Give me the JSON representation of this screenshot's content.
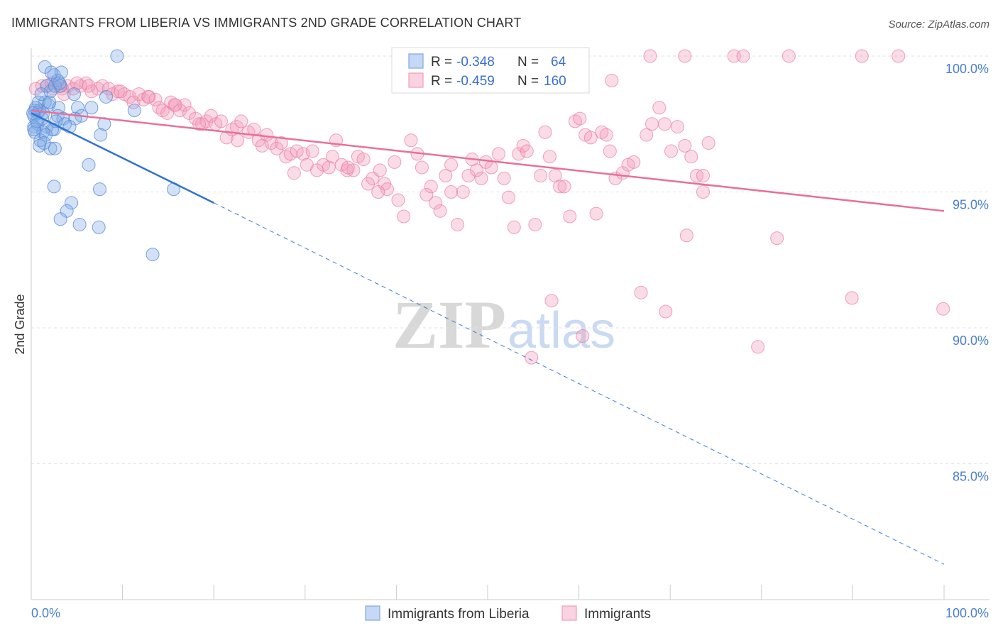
{
  "title": "IMMIGRANTS FROM LIBERIA VS IMMIGRANTS 2ND GRADE CORRELATION CHART",
  "source": "Source: ZipAtlas.com",
  "watermark": {
    "part1": "ZIP",
    "part2": "atlas"
  },
  "legend": {
    "rows": [
      {
        "r_label": "R =",
        "r_value": "-0.348",
        "n_label": "N =",
        "n_value": "64",
        "color": "#7fa8e6"
      },
      {
        "r_label": "R =",
        "r_value": "-0.459",
        "n_label": "N =",
        "n_value": "160",
        "color": "#f29bb8"
      }
    ]
  },
  "bottom_legend": [
    {
      "label": "Immigrants from Liberia",
      "color": "#7fa8e6"
    },
    {
      "label": "Immigrants",
      "color": "#f29bb8"
    }
  ],
  "chart_data": {
    "type": "scatter",
    "title": "IMMIGRANTS FROM LIBERIA VS IMMIGRANTS 2ND GRADE CORRELATION CHART",
    "xlabel": "",
    "ylabel": "2nd Grade",
    "xlim": [
      0,
      100
    ],
    "ylim": [
      80.9,
      100.9
    ],
    "x_tick_labels": [
      "0.0%",
      "100.0%"
    ],
    "y_tick_labels": [
      "100.0%",
      "95.0%",
      "90.0%",
      "85.0%"
    ],
    "y_tick_values": [
      100,
      95,
      90,
      85
    ],
    "grid": true,
    "series": [
      {
        "name": "Immigrants from Liberia",
        "color": "#7fa8e6",
        "trend": {
          "x": [
            0,
            20
          ],
          "y": [
            97.9,
            94.6
          ],
          "extended_to": [
            100,
            81.3
          ]
        },
        "points": [
          [
            1.5,
            99.6
          ],
          [
            2.5,
            99.3
          ],
          [
            3.3,
            99.4
          ],
          [
            2.9,
            99.1
          ],
          [
            1.7,
            98.9
          ],
          [
            2.1,
            98.7
          ],
          [
            2.6,
            98.9
          ],
          [
            3.2,
            98.9
          ],
          [
            4.7,
            98.6
          ],
          [
            8.2,
            98.5
          ],
          [
            1.5,
            98.3
          ],
          [
            0.8,
            98.3
          ],
          [
            1.9,
            98.2
          ],
          [
            3.0,
            98.1
          ],
          [
            5.1,
            98.1
          ],
          [
            6.6,
            98.1
          ],
          [
            11.3,
            98.0
          ],
          [
            0.4,
            98.0
          ],
          [
            0.9,
            98.0
          ],
          [
            0.7,
            97.9
          ],
          [
            1.3,
            97.9
          ],
          [
            0.3,
            97.8
          ],
          [
            2.9,
            97.8
          ],
          [
            3.5,
            97.7
          ],
          [
            5.5,
            97.8
          ],
          [
            4.8,
            97.7
          ],
          [
            0.7,
            97.5
          ],
          [
            0.3,
            97.4
          ],
          [
            1.7,
            97.4
          ],
          [
            3.7,
            97.5
          ],
          [
            4.2,
            97.4
          ],
          [
            8.0,
            97.5
          ],
          [
            2.5,
            97.3
          ],
          [
            1.3,
            97.2
          ],
          [
            0.4,
            97.2
          ],
          [
            7.6,
            97.1
          ],
          [
            1.0,
            96.9
          ],
          [
            0.9,
            96.7
          ],
          [
            2.1,
            96.6
          ],
          [
            2.6,
            96.6
          ],
          [
            6.3,
            96.0
          ],
          [
            2.5,
            95.2
          ],
          [
            7.5,
            95.1
          ],
          [
            15.6,
            95.1
          ],
          [
            4.4,
            94.6
          ],
          [
            3.9,
            94.3
          ],
          [
            3.2,
            94.0
          ],
          [
            5.3,
            93.8
          ],
          [
            7.4,
            93.7
          ],
          [
            13.3,
            92.7
          ],
          [
            9.4,
            100.0
          ],
          [
            2.2,
            99.4
          ],
          [
            3.1,
            99.0
          ],
          [
            1.1,
            98.6
          ],
          [
            2.0,
            98.3
          ],
          [
            0.5,
            98.1
          ],
          [
            1.2,
            97.7
          ],
          [
            0.6,
            97.6
          ],
          [
            2.3,
            97.3
          ],
          [
            1.6,
            97.1
          ],
          [
            0.3,
            97.3
          ],
          [
            1.4,
            96.8
          ],
          [
            0.2,
            97.9
          ],
          [
            2.7,
            97.6
          ]
        ]
      },
      {
        "name": "Immigrants",
        "color": "#f29bb8",
        "trend": {
          "x": [
            0,
            100
          ],
          "y": [
            98.0,
            94.3
          ]
        },
        "points": [
          [
            0.5,
            98.8
          ],
          [
            1.7,
            98.9
          ],
          [
            2.4,
            98.8
          ],
          [
            3.1,
            98.9
          ],
          [
            3.4,
            98.8
          ],
          [
            4.0,
            98.9
          ],
          [
            4.6,
            98.8
          ],
          [
            5.4,
            98.9
          ],
          [
            6.0,
            99.0
          ],
          [
            6.6,
            98.7
          ],
          [
            7.3,
            98.8
          ],
          [
            7.8,
            98.9
          ],
          [
            8.5,
            98.8
          ],
          [
            8.9,
            98.6
          ],
          [
            9.5,
            98.7
          ],
          [
            10.2,
            98.6
          ],
          [
            10.8,
            98.5
          ],
          [
            11.2,
            98.3
          ],
          [
            11.8,
            98.6
          ],
          [
            12.3,
            98.4
          ],
          [
            12.9,
            98.5
          ],
          [
            13.6,
            98.4
          ],
          [
            14.0,
            98.1
          ],
          [
            14.4,
            98.0
          ],
          [
            14.9,
            97.9
          ],
          [
            15.3,
            98.3
          ],
          [
            15.7,
            98.2
          ],
          [
            16.3,
            98.0
          ],
          [
            16.8,
            98.2
          ],
          [
            17.3,
            97.9
          ],
          [
            18.0,
            97.7
          ],
          [
            18.7,
            97.5
          ],
          [
            19.2,
            97.6
          ],
          [
            19.7,
            97.8
          ],
          [
            20.2,
            97.5
          ],
          [
            20.8,
            97.6
          ],
          [
            21.4,
            97.0
          ],
          [
            22.0,
            97.3
          ],
          [
            22.5,
            97.4
          ],
          [
            23.0,
            97.6
          ],
          [
            23.8,
            97.2
          ],
          [
            24.4,
            97.3
          ],
          [
            24.9,
            96.9
          ],
          [
            25.3,
            96.7
          ],
          [
            25.8,
            97.1
          ],
          [
            26.3,
            96.8
          ],
          [
            26.9,
            96.6
          ],
          [
            27.4,
            96.8
          ],
          [
            27.9,
            96.3
          ],
          [
            28.4,
            96.4
          ],
          [
            29.1,
            96.5
          ],
          [
            29.8,
            96.4
          ],
          [
            30.2,
            96.0
          ],
          [
            30.8,
            96.5
          ],
          [
            31.3,
            95.8
          ],
          [
            32.0,
            96.0
          ],
          [
            32.6,
            95.9
          ],
          [
            33.0,
            96.3
          ],
          [
            33.4,
            96.9
          ],
          [
            34.0,
            96.0
          ],
          [
            34.6,
            95.8
          ],
          [
            35.3,
            95.8
          ],
          [
            35.8,
            96.3
          ],
          [
            36.4,
            96.2
          ],
          [
            36.9,
            95.3
          ],
          [
            37.4,
            95.5
          ],
          [
            38.2,
            95.8
          ],
          [
            38.7,
            95.3
          ],
          [
            39.0,
            95.1
          ],
          [
            39.8,
            96.1
          ],
          [
            40.2,
            94.7
          ],
          [
            40.8,
            94.1
          ],
          [
            41.6,
            96.9
          ],
          [
            42.3,
            96.4
          ],
          [
            42.8,
            95.9
          ],
          [
            43.3,
            94.9
          ],
          [
            43.8,
            95.2
          ],
          [
            44.3,
            94.6
          ],
          [
            44.8,
            94.3
          ],
          [
            45.4,
            95.6
          ],
          [
            46.0,
            95.0
          ],
          [
            46.7,
            93.8
          ],
          [
            47.3,
            95.0
          ],
          [
            47.9,
            95.6
          ],
          [
            48.3,
            96.2
          ],
          [
            48.8,
            95.8
          ],
          [
            49.3,
            95.5
          ],
          [
            49.8,
            96.1
          ],
          [
            50.4,
            95.9
          ],
          [
            51.2,
            96.4
          ],
          [
            51.8,
            95.5
          ],
          [
            52.3,
            94.8
          ],
          [
            52.9,
            93.7
          ],
          [
            53.4,
            96.4
          ],
          [
            53.9,
            96.7
          ],
          [
            54.3,
            96.5
          ],
          [
            55.2,
            93.8
          ],
          [
            55.8,
            95.6
          ],
          [
            56.3,
            97.2
          ],
          [
            56.8,
            96.3
          ],
          [
            57.4,
            95.6
          ],
          [
            57.9,
            95.2
          ],
          [
            58.4,
            95.2
          ],
          [
            59.0,
            94.1
          ],
          [
            59.6,
            97.6
          ],
          [
            60.1,
            97.7
          ],
          [
            60.7,
            97.1
          ],
          [
            61.3,
            97.0
          ],
          [
            61.9,
            94.2
          ],
          [
            62.5,
            97.2
          ],
          [
            63.0,
            97.1
          ],
          [
            63.4,
            96.5
          ],
          [
            64.0,
            95.5
          ],
          [
            64.8,
            95.7
          ],
          [
            65.4,
            96.0
          ],
          [
            66.0,
            96.1
          ],
          [
            66.8,
            91.3
          ],
          [
            67.4,
            97.1
          ],
          [
            68.0,
            97.5
          ],
          [
            68.8,
            98.1
          ],
          [
            69.4,
            97.5
          ],
          [
            70.1,
            96.5
          ],
          [
            70.8,
            97.4
          ],
          [
            71.6,
            96.7
          ],
          [
            72.3,
            96.3
          ],
          [
            72.9,
            95.6
          ],
          [
            73.6,
            95.6
          ],
          [
            74.2,
            96.8
          ],
          [
            67.8,
            100.0
          ],
          [
            71.6,
            100.0
          ],
          [
            77.0,
            100.0
          ],
          [
            78.0,
            100.0
          ],
          [
            83.0,
            100.0
          ],
          [
            91.0,
            100.0
          ],
          [
            95.0,
            100.0
          ],
          [
            63.6,
            99.1
          ],
          [
            2.2,
            99.0
          ],
          [
            3.6,
            98.6
          ],
          [
            1.2,
            98.9
          ],
          [
            5.0,
            99.0
          ],
          [
            60.4,
            89.7
          ],
          [
            89.9,
            91.1
          ],
          [
            69.5,
            90.6
          ],
          [
            57.0,
            91.0
          ],
          [
            79.6,
            89.3
          ],
          [
            99.9,
            90.7
          ],
          [
            81.7,
            93.3
          ],
          [
            71.8,
            93.4
          ],
          [
            54.8,
            88.9
          ],
          [
            73.6,
            95.0
          ],
          [
            28.8,
            95.7
          ],
          [
            46.0,
            96.0
          ],
          [
            38.0,
            95.0
          ],
          [
            34.7,
            95.9
          ],
          [
            22.6,
            96.9
          ],
          [
            18.4,
            97.5
          ],
          [
            12.8,
            98.5
          ],
          [
            15.8,
            98.2
          ],
          [
            9.8,
            98.7
          ],
          [
            6.3,
            98.9
          ]
        ]
      }
    ]
  }
}
